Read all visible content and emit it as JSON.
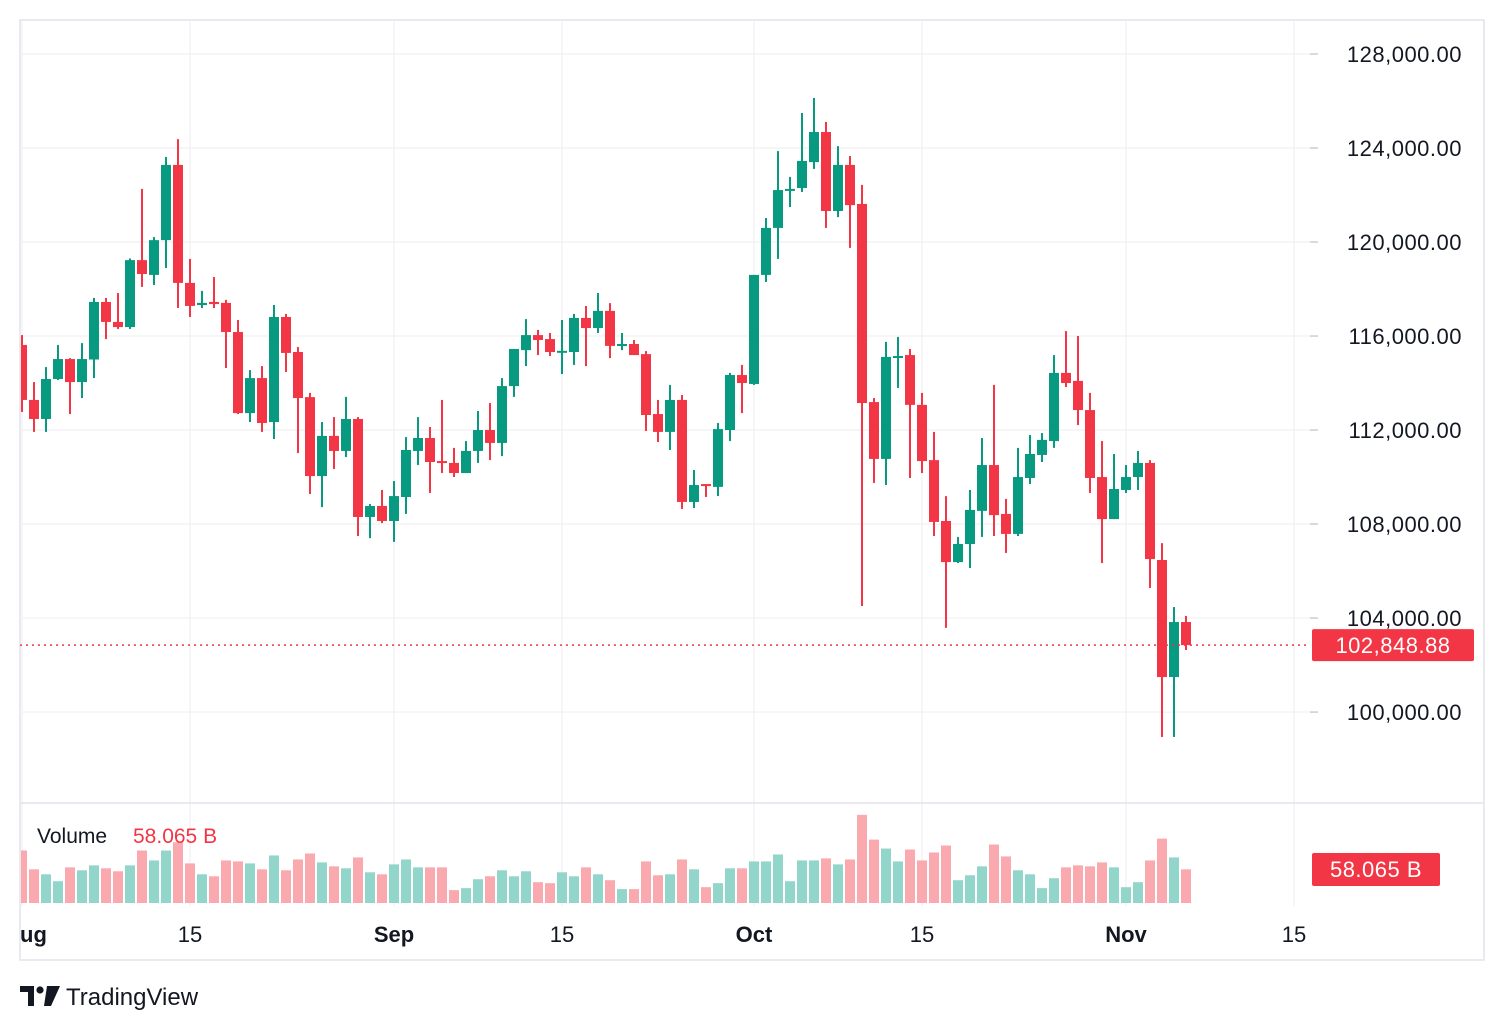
{
  "brand": {
    "name": "TradingView"
  },
  "colors": {
    "up": "#089981",
    "down": "#F23645",
    "volume_up": "#92D5CA",
    "volume_down": "#FAA9AF",
    "grid": "#F0F1F3",
    "text": "#131722"
  },
  "volume_legend": {
    "label": "Volume",
    "value": "58.065 B"
  },
  "last_price_tag": "102,848.88",
  "last_volume_tag": "58.065 B",
  "chart_data": {
    "type": "candlestick",
    "interval": "1D",
    "ylim": [
      97000,
      129500
    ],
    "price_ticks": [
      {
        "value": 128000,
        "label": "128,000.00"
      },
      {
        "value": 124000,
        "label": "124,000.00"
      },
      {
        "value": 120000,
        "label": "120,000.00"
      },
      {
        "value": 116000,
        "label": "116,000.00"
      },
      {
        "value": 112000,
        "label": "112,000.00"
      },
      {
        "value": 108000,
        "label": "108,000.00"
      },
      {
        "value": 104000,
        "label": "104,000.00"
      },
      {
        "value": 100000,
        "label": "100,000.00"
      }
    ],
    "x_ticks": [
      {
        "date": "Aug 1",
        "label": "ug",
        "month": true
      },
      {
        "date": "Aug 15",
        "label": "15",
        "month": false
      },
      {
        "date": "Sep 1",
        "label": "Sep",
        "month": true
      },
      {
        "date": "Sep 15",
        "label": "15",
        "month": false
      },
      {
        "date": "Oct 1",
        "label": "Oct",
        "month": true
      },
      {
        "date": "Oct 15",
        "label": "15",
        "month": false
      },
      {
        "date": "Nov 1",
        "label": "Nov",
        "month": true
      },
      {
        "date": "Nov 15",
        "label": "15",
        "month": false
      }
    ],
    "last_price": 102848.88,
    "volume_unit": "B",
    "fields": [
      "date",
      "open",
      "high",
      "low",
      "close",
      "volume"
    ],
    "candles": [
      [
        "Aug 1",
        115620,
        116040,
        112770,
        113280,
        90.5
      ],
      [
        "Aug 2",
        113280,
        114040,
        111920,
        112470,
        58.1
      ],
      [
        "Aug 3",
        112470,
        114680,
        111920,
        114170,
        49.5
      ],
      [
        "Aug 4",
        114170,
        115620,
        114130,
        115020,
        37.6
      ],
      [
        "Aug 5",
        115020,
        115060,
        112680,
        114040,
        61.5
      ],
      [
        "Aug 6",
        114040,
        115700,
        113360,
        115020,
        56.4
      ],
      [
        "Aug 7",
        115000,
        117620,
        114210,
        117450,
        64.9
      ],
      [
        "Aug 8",
        117450,
        117620,
        115870,
        116600,
        59.8
      ],
      [
        "Aug 9",
        116600,
        117830,
        116300,
        116380,
        54.7
      ],
      [
        "Aug 10",
        116380,
        119300,
        116300,
        119230,
        64.9
      ],
      [
        "Aug 11",
        119230,
        122260,
        118090,
        118640,
        90.5
      ],
      [
        "Aug 12",
        118600,
        120210,
        118170,
        120080,
        73.4
      ],
      [
        "Aug 13",
        120080,
        123620,
        118890,
        123280,
        90.5
      ],
      [
        "Aug 14",
        123280,
        124380,
        117190,
        118260,
        104.7
      ],
      [
        "Aug 15",
        118260,
        119280,
        116810,
        117280,
        68.3
      ],
      [
        "Aug 16",
        117320,
        117920,
        117190,
        117410,
        49.5
      ],
      [
        "Aug 17",
        117450,
        118510,
        117190,
        117360,
        46.1
      ],
      [
        "Aug 18",
        117410,
        117540,
        114640,
        116170,
        73.4
      ],
      [
        "Aug 19",
        116170,
        116680,
        112680,
        112720,
        71.7
      ],
      [
        "Aug 20",
        112720,
        114550,
        112340,
        114210,
        68.3
      ],
      [
        "Aug 21",
        114210,
        114720,
        111920,
        112300,
        58.1
      ],
      [
        "Aug 22",
        112340,
        117320,
        111620,
        116810,
        82.0
      ],
      [
        "Aug 23",
        116810,
        116940,
        114470,
        115280,
        56.4
      ],
      [
        "Aug 24",
        115320,
        115530,
        111020,
        113360,
        75.1
      ],
      [
        "Aug 25",
        113400,
        113580,
        109280,
        110040,
        85.4
      ],
      [
        "Aug 26",
        110040,
        112340,
        108720,
        111750,
        70.0
      ],
      [
        "Aug 27",
        111750,
        112550,
        110340,
        111110,
        63.2
      ],
      [
        "Aug 28",
        111110,
        113410,
        110850,
        112470,
        59.8
      ],
      [
        "Aug 29",
        112470,
        112550,
        107490,
        108300,
        78.6
      ],
      [
        "Aug 30",
        108300,
        108850,
        107400,
        108770,
        52.9
      ],
      [
        "Aug 31",
        108770,
        109450,
        108040,
        108130,
        49.5
      ],
      [
        "Sep 1",
        108130,
        109830,
        107240,
        109190,
        66.6
      ],
      [
        "Sep 2",
        109150,
        111700,
        108430,
        111150,
        75.1
      ],
      [
        "Sep 3",
        111110,
        112550,
        110510,
        111660,
        61.5
      ],
      [
        "Sep 4",
        111660,
        112130,
        109320,
        110640,
        61.5
      ],
      [
        "Sep 5",
        110680,
        113280,
        110170,
        110640,
        61.5
      ],
      [
        "Sep 6",
        110600,
        111240,
        110000,
        110170,
        22.2
      ],
      [
        "Sep 7",
        110170,
        111530,
        110170,
        111110,
        25.6
      ],
      [
        "Sep 8",
        111110,
        112810,
        110600,
        112000,
        41.0
      ],
      [
        "Sep 9",
        112000,
        113150,
        110720,
        111450,
        46.1
      ],
      [
        "Sep 10",
        111450,
        114210,
        110890,
        113870,
        56.4
      ],
      [
        "Sep 11",
        113870,
        115450,
        113410,
        115450,
        46.1
      ],
      [
        "Sep 12",
        115400,
        116720,
        114720,
        116040,
        54.7
      ],
      [
        "Sep 13",
        116040,
        116260,
        115190,
        115830,
        35.9
      ],
      [
        "Sep 14",
        115870,
        116130,
        115150,
        115320,
        34.2
      ],
      [
        "Sep 15",
        115330,
        116680,
        114380,
        115370,
        52.9
      ],
      [
        "Sep 16",
        115320,
        116940,
        114770,
        116770,
        46.1
      ],
      [
        "Sep 17",
        116770,
        117280,
        114720,
        116340,
        61.5
      ],
      [
        "Sep 18",
        116340,
        117830,
        116130,
        117070,
        49.5
      ],
      [
        "Sep 19",
        117070,
        117400,
        115060,
        115580,
        39.3
      ],
      [
        "Sep 20",
        115620,
        116130,
        115400,
        115660,
        23.9
      ],
      [
        "Sep 21",
        115660,
        115830,
        115190,
        115190,
        23.9
      ],
      [
        "Sep 22",
        115230,
        115360,
        111960,
        112640,
        71.7
      ],
      [
        "Sep 23",
        112680,
        113280,
        111490,
        111920,
        47.8
      ],
      [
        "Sep 24",
        111920,
        113920,
        111150,
        113280,
        49.5
      ],
      [
        "Sep 25",
        113280,
        113490,
        108640,
        108940,
        75.1
      ],
      [
        "Sep 26",
        108940,
        110300,
        108680,
        109660,
        58.1
      ],
      [
        "Sep 27",
        109700,
        109700,
        109150,
        109620,
        27.3
      ],
      [
        "Sep 28",
        109580,
        112300,
        109190,
        112040,
        34.2
      ],
      [
        "Sep 29",
        112000,
        114430,
        111530,
        114340,
        59.8
      ],
      [
        "Sep 30",
        114340,
        114770,
        112720,
        114000,
        59.8
      ],
      [
        "Oct 1",
        113960,
        118600,
        113920,
        118600,
        71.7
      ],
      [
        "Oct 2",
        118600,
        121020,
        118300,
        120600,
        71.7
      ],
      [
        "Oct 3",
        120600,
        123870,
        119280,
        122210,
        83.7
      ],
      [
        "Oct 4",
        122210,
        122770,
        121490,
        122260,
        37.6
      ],
      [
        "Oct 5",
        122300,
        125490,
        122130,
        123450,
        73.4
      ],
      [
        "Oct 6",
        123400,
        126130,
        123110,
        124680,
        73.4
      ],
      [
        "Oct 7",
        124680,
        125110,
        120600,
        121320,
        76.9
      ],
      [
        "Oct 8",
        121320,
        124080,
        121060,
        123280,
        66.6
      ],
      [
        "Oct 9",
        123280,
        123660,
        119750,
        121570,
        75.1
      ],
      [
        "Oct 10",
        121620,
        122430,
        104510,
        113150,
        152.0
      ],
      [
        "Oct 11",
        113190,
        113360,
        109750,
        110770,
        109.3
      ],
      [
        "Oct 12",
        110770,
        115750,
        109660,
        115110,
        93.9
      ],
      [
        "Oct 13",
        115110,
        115960,
        113790,
        115150,
        71.7
      ],
      [
        "Oct 14",
        115190,
        115450,
        109960,
        113070,
        92.2
      ],
      [
        "Oct 15",
        113070,
        113580,
        110170,
        110680,
        73.4
      ],
      [
        "Oct 16",
        110720,
        111920,
        107490,
        108090,
        87.1
      ],
      [
        "Oct 17",
        108130,
        109190,
        103580,
        106380,
        99.1
      ],
      [
        "Oct 18",
        106380,
        107450,
        106340,
        107150,
        39.3
      ],
      [
        "Oct 19",
        107150,
        109450,
        106130,
        108600,
        47.8
      ],
      [
        "Oct 20",
        108560,
        111660,
        107450,
        110510,
        63.2
      ],
      [
        "Oct 21",
        110510,
        113920,
        107490,
        108380,
        100.8
      ],
      [
        "Oct 22",
        108430,
        109070,
        106770,
        107580,
        80.3
      ],
      [
        "Oct 23",
        107580,
        111240,
        107490,
        110000,
        56.4
      ],
      [
        "Oct 24",
        109960,
        111790,
        109700,
        110980,
        49.5
      ],
      [
        "Oct 25",
        110940,
        111870,
        110640,
        111580,
        25.6
      ],
      [
        "Oct 26",
        111530,
        115190,
        111240,
        114430,
        42.7
      ],
      [
        "Oct 27",
        114430,
        116210,
        113830,
        114000,
        61.5
      ],
      [
        "Oct 28",
        114090,
        116000,
        112210,
        112850,
        64.9
      ],
      [
        "Oct 29",
        112850,
        113580,
        109320,
        109960,
        63.2
      ],
      [
        "Oct 30",
        110000,
        111530,
        106340,
        108210,
        70.0
      ],
      [
        "Oct 31",
        108210,
        110980,
        108210,
        109490,
        61.5
      ],
      [
        "Nov 1",
        109450,
        110510,
        109320,
        110000,
        27.3
      ],
      [
        "Nov 2",
        110000,
        111110,
        109450,
        110600,
        35.9
      ],
      [
        "Nov 3",
        110600,
        110720,
        105280,
        106510,
        73.4
      ],
      [
        "Nov 4",
        106470,
        107190,
        98940,
        101490,
        111.0
      ],
      [
        "Nov 5",
        101490,
        104470,
        98940,
        103830,
        78.6
      ],
      [
        "Nov 6",
        103830,
        104090,
        102640,
        102848.88,
        58.065
      ]
    ]
  }
}
